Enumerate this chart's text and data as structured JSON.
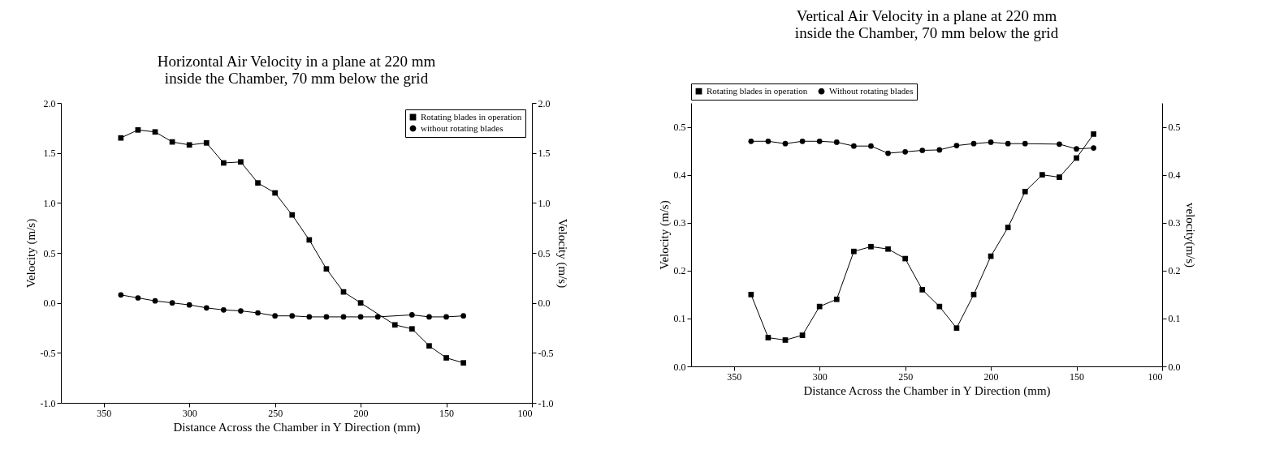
{
  "chart_data": [
    {
      "type": "line",
      "title": "Horizontal Air Velocity in a plane at 220 mm inside the Chamber, 70 mm below the grid",
      "xlabel": "Distance Across the Chamber in Y Direction (mm)",
      "ylabel": "Velocity (m/s)",
      "y2label": "Velocity (m/s)",
      "x": [
        340,
        330,
        320,
        310,
        300,
        290,
        280,
        270,
        260,
        250,
        240,
        230,
        220,
        210,
        200,
        180,
        170,
        160,
        150,
        140
      ],
      "series": [
        {
          "name": "Rotating blades in operation",
          "color": "#000000",
          "marker": "square",
          "values": [
            1.65,
            1.73,
            1.71,
            1.61,
            1.58,
            1.6,
            1.4,
            1.41,
            1.2,
            1.1,
            0.88,
            0.63,
            0.34,
            0.11,
            0.0,
            -0.22,
            -0.26,
            -0.43,
            -0.55,
            -0.6
          ]
        },
        {
          "name": "without rotating blades",
          "color": "#000000",
          "marker": "circle",
          "x": [
            340,
            330,
            320,
            310,
            300,
            290,
            280,
            270,
            260,
            250,
            240,
            230,
            220,
            210,
            200,
            190,
            170,
            160,
            150,
            140
          ],
          "values": [
            0.08,
            0.05,
            0.02,
            0.0,
            -0.02,
            -0.05,
            -0.07,
            -0.08,
            -0.1,
            -0.13,
            -0.13,
            -0.14,
            -0.14,
            -0.14,
            -0.14,
            -0.14,
            -0.12,
            -0.14,
            -0.14,
            -0.13
          ]
        }
      ],
      "xlim": [
        375,
        100
      ],
      "xticks": [
        350,
        300,
        250,
        200,
        150,
        100
      ],
      "ylim": [
        -1,
        2
      ],
      "yticks": [
        {
          "value": -1,
          "label": "-1.0"
        },
        -0.5,
        {
          "value": 0,
          "label": "0.0"
        },
        0.5,
        {
          "value": 1,
          "label": "1.0"
        },
        1.5,
        {
          "value": 2,
          "label": "2.0"
        }
      ],
      "y2lim": [
        -1,
        2
      ],
      "y2ticks": [
        {
          "value": -1,
          "label": "-1.0"
        },
        -0.5,
        {
          "value": 0,
          "label": "0.0"
        },
        0.5,
        {
          "value": 1,
          "label": "1.0"
        },
        1.5,
        {
          "value": 2,
          "label": "2.0"
        }
      ],
      "legend": "top right"
    },
    {
      "type": "line",
      "title": "Vertical Air Velocity in a plane at 220 mm inside the Chamber, 70 mm below the grid",
      "xlabel": "Distance Across the Chamber in Y Direction (mm)",
      "ylabel": "Velocity (m/s)",
      "y2label": "velocity(m/s)",
      "x": [
        340,
        330,
        320,
        310,
        300,
        290,
        280,
        270,
        260,
        250,
        240,
        230,
        220,
        210,
        200,
        190,
        180,
        170,
        160,
        150,
        140
      ],
      "series": [
        {
          "name": "Rotating blades in operation",
          "color": "#000000",
          "marker": "square",
          "values": [
            0.15,
            0.06,
            0.055,
            0.065,
            0.125,
            0.14,
            0.24,
            0.25,
            0.245,
            0.225,
            0.16,
            0.125,
            0.08,
            0.15,
            0.23,
            0.29,
            0.365,
            0.4,
            0.395,
            0.435,
            0.485
          ]
        },
        {
          "name": "Without rotating blades",
          "color": "#000000",
          "marker": "circle",
          "x": [
            340,
            330,
            320,
            310,
            300,
            290,
            280,
            270,
            260,
            250,
            240,
            230,
            220,
            210,
            200,
            190,
            180,
            160,
            150,
            140
          ],
          "values": [
            0.47,
            0.47,
            0.465,
            0.47,
            0.47,
            0.468,
            0.46,
            0.46,
            0.445,
            0.448,
            0.451,
            0.452,
            0.461,
            0.465,
            0.468,
            0.465,
            0.465,
            0.464,
            0.454,
            0.456
          ]
        }
      ],
      "xlim": [
        375,
        100
      ],
      "xticks": [
        350,
        300,
        250,
        200,
        150,
        100
      ],
      "ylim": [
        0,
        0.55
      ],
      "yticks": [
        {
          "value": 0,
          "label": "0.0"
        },
        0.1,
        0.2,
        0.3,
        0.4,
        0.5
      ],
      "y2lim": [
        0,
        0.55
      ],
      "y2ticks": [
        {
          "value": 0,
          "label": "0.0"
        },
        0.1,
        0.2,
        0.3,
        0.4,
        0.5
      ],
      "legend": "top"
    }
  ]
}
